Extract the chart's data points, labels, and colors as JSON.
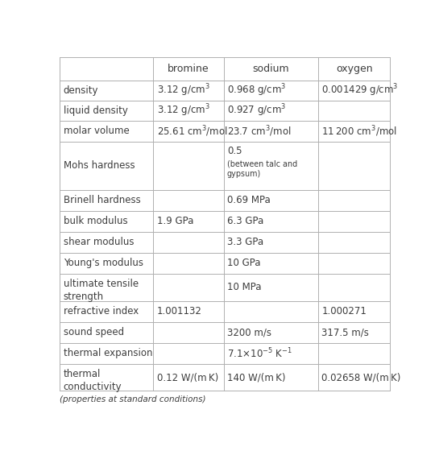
{
  "headers": [
    "",
    "bromine",
    "sodium",
    "oxygen"
  ],
  "rows": [
    {
      "property": "density",
      "bromine": "3.12 g/cm$^3$",
      "sodium": "0.968 g/cm$^3$",
      "oxygen": "0.001429 g/cm$^3$"
    },
    {
      "property": "liquid density",
      "bromine": "3.12 g/cm$^3$",
      "sodium": "0.927 g/cm$^3$",
      "oxygen": ""
    },
    {
      "property": "molar volume",
      "bromine": "25.61 cm$^3$/mol",
      "sodium": "23.7 cm$^3$/mol",
      "oxygen": "11 200 cm$^3$/mol"
    },
    {
      "property": "Mohs hardness",
      "bromine": "",
      "sodium_line1": "0.5",
      "sodium_line2": "(between talc and",
      "sodium_line3": "gypsum)",
      "sodium": "0.5\n(between talc and\ngypsum)",
      "oxygen": ""
    },
    {
      "property": "Brinell hardness",
      "bromine": "",
      "sodium": "0.69 MPa",
      "oxygen": ""
    },
    {
      "property": "bulk modulus",
      "bromine": "1.9 GPa",
      "sodium": "6.3 GPa",
      "oxygen": ""
    },
    {
      "property": "shear modulus",
      "bromine": "",
      "sodium": "3.3 GPa",
      "oxygen": ""
    },
    {
      "property": "Young's modulus",
      "bromine": "",
      "sodium": "10 GPa",
      "oxygen": ""
    },
    {
      "property": "ultimate tensile\nstrength",
      "bromine": "",
      "sodium": "10 MPa",
      "oxygen": ""
    },
    {
      "property": "refractive index",
      "bromine": "1.001132",
      "sodium": "",
      "oxygen": "1.000271"
    },
    {
      "property": "sound speed",
      "bromine": "",
      "sodium": "3200 m/s",
      "oxygen": "317.5 m/s"
    },
    {
      "property": "thermal expansion",
      "bromine": "",
      "sodium": "7.1×10$^{-5}$ K$^{-1}$",
      "oxygen": ""
    },
    {
      "property": "thermal\nconductivity",
      "bromine": "0.12 W/(m K)",
      "sodium": "140 W/(m K)",
      "oxygen": "0.02658 W/(m K)"
    }
  ],
  "footer": "(properties at standard conditions)",
  "bg_color": "#ffffff",
  "text_color": "#3d3d3d",
  "line_color": "#b0b0b0",
  "font_size": 8.5,
  "header_font_size": 9.0,
  "footer_font_size": 7.5
}
